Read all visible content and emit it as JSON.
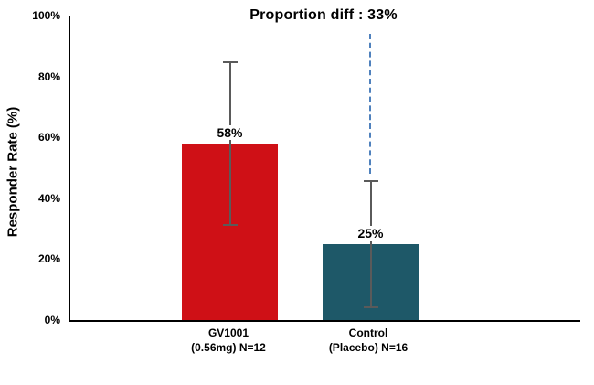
{
  "chart_data": {
    "type": "bar",
    "title": "Proportion diff : 33%",
    "ylabel": "Responder Rate (%)",
    "ylim": [
      0,
      100
    ],
    "grid": false,
    "legend": "none",
    "yticks": [
      "0%",
      "20%",
      "40%",
      "60%",
      "80%",
      "100%"
    ],
    "ytick_values": [
      0,
      20,
      40,
      60,
      80,
      100
    ],
    "categories": [
      {
        "line1": "GV1001",
        "line2": "(0.56mg) N=12"
      },
      {
        "line1": "Control",
        "line2": "(Placebo) N=16"
      }
    ],
    "series": [
      {
        "name": "GV1001 (0.56mg) N=12",
        "value": 58,
        "label": "58%",
        "color": "#cf1016",
        "error_low": 31,
        "error_high": 85
      },
      {
        "name": "Control (Placebo) N=16",
        "value": 25,
        "label": "25%",
        "color": "#1e5868",
        "error_low": 4,
        "error_high": 46
      }
    ],
    "error_bar_color": "#5a5a5a",
    "annotation_line": {
      "style": "dashed",
      "color": "#4f81bd",
      "over_category": "Control (Placebo) N=16",
      "from_pct": 48,
      "to_pct": 94
    }
  }
}
